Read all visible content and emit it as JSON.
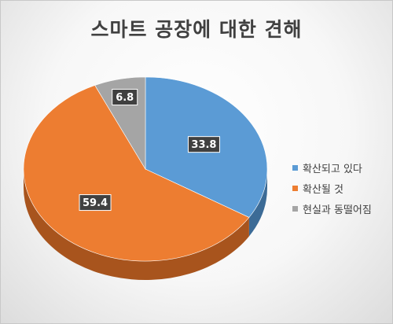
{
  "chart_data": {
    "type": "pie",
    "title": "스마트 공장에 대한 견해",
    "categories": [
      "확산되고 있다",
      "확산될 것",
      "현실과 동떨어짐"
    ],
    "values": [
      33.8,
      59.4,
      6.8
    ],
    "value_labels": [
      "33.8",
      "59.4",
      "6.8"
    ],
    "colors": [
      "#5B9BD5",
      "#ED7D31",
      "#A5A5A5"
    ],
    "side_colors": [
      "#3c6b96",
      "#a8541d",
      "#737373"
    ],
    "legend_position": "right",
    "start_angle_deg": 0,
    "direction": "clockwise"
  }
}
